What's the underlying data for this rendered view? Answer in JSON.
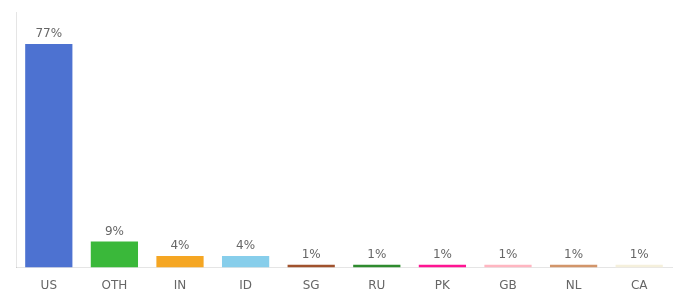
{
  "chart_data": {
    "type": "bar",
    "categories": [
      "US",
      "OTH",
      "IN",
      "ID",
      "SG",
      "RU",
      "PK",
      "GB",
      "NL",
      "CA"
    ],
    "values": [
      77,
      9,
      4,
      4,
      1,
      1,
      1,
      1,
      1,
      1
    ],
    "value_labels": [
      "77%",
      "9%",
      "4%",
      "4%",
      "1%",
      "1%",
      "1%",
      "1%",
      "1%",
      "1%"
    ],
    "colors": [
      "#4d72d1",
      "#3ab83a",
      "#f5a623",
      "#87ceeb",
      "#a0522d",
      "#2e8b2e",
      "#ff1493",
      "#ffb6c1",
      "#d2956a",
      "#f5f0dc"
    ],
    "ylim": [
      0,
      88
    ],
    "grid": false,
    "data_labels": true,
    "tick_labels": "x"
  }
}
